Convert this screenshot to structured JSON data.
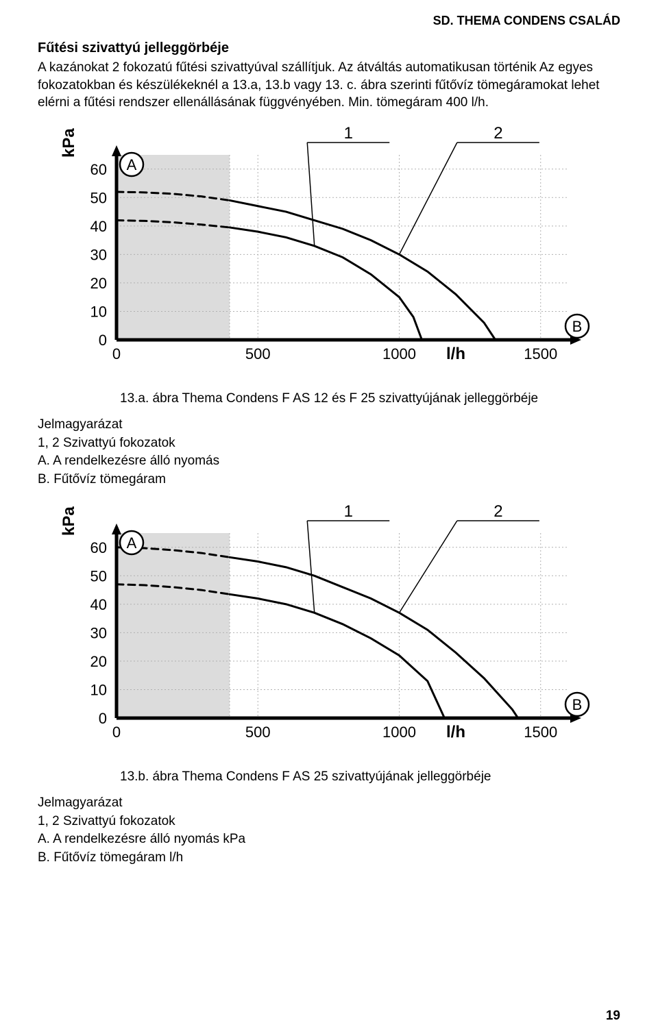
{
  "header": {
    "right": "SD. THEMA CONDENS CSALÁD"
  },
  "section": {
    "title": "Fűtési szivattyú jelleggörbéje",
    "paragraph": "A kazánokat 2 fokozatú fűtési szivattyúval szállítjuk. Az átváltás automatikusan történik Az egyes fokozatokban és készülékeknél a 13.a, 13.b vagy 13. c. ábra szerinti fűtővíz tömegáramokat lehet elérni a fűtési rendszer ellenállásának függvényében. Min. tömegáram 400 l/h."
  },
  "chartA": {
    "type": "line",
    "y_unit": "kPa",
    "x_unit": "l/h",
    "y_ticks": [
      0,
      10,
      20,
      30,
      40,
      50,
      60
    ],
    "x_ticks": [
      0,
      500,
      1000,
      1500
    ],
    "ylim": [
      0,
      65
    ],
    "xlim": [
      0,
      1600
    ],
    "shaded_x_range": [
      0,
      400
    ],
    "marker_A": "A",
    "marker_B": "B",
    "callout_1": "1",
    "callout_2": "2",
    "series": [
      {
        "name": "curve1",
        "color": "#000000",
        "width": 3,
        "dash_until_x": 400,
        "points": [
          [
            0,
            42
          ],
          [
            100,
            41.8
          ],
          [
            200,
            41.3
          ],
          [
            300,
            40.5
          ],
          [
            400,
            39.5
          ],
          [
            500,
            38
          ],
          [
            600,
            36
          ],
          [
            700,
            33
          ],
          [
            800,
            29
          ],
          [
            900,
            23
          ],
          [
            1000,
            15
          ],
          [
            1050,
            8
          ],
          [
            1080,
            0
          ]
        ]
      },
      {
        "name": "curve2",
        "color": "#000000",
        "width": 3,
        "dash_until_x": 400,
        "points": [
          [
            0,
            52
          ],
          [
            100,
            51.8
          ],
          [
            200,
            51.3
          ],
          [
            300,
            50.4
          ],
          [
            400,
            49
          ],
          [
            500,
            47
          ],
          [
            600,
            45
          ],
          [
            700,
            42
          ],
          [
            800,
            39
          ],
          [
            900,
            35
          ],
          [
            1000,
            30
          ],
          [
            1100,
            24
          ],
          [
            1200,
            16
          ],
          [
            1300,
            6
          ],
          [
            1340,
            0
          ]
        ]
      }
    ],
    "callouts": [
      {
        "label": "1",
        "line_to_x": 700,
        "line_to_curve": 1
      },
      {
        "label": "2",
        "line_to_x": 1000,
        "line_to_curve": 2
      }
    ],
    "colors": {
      "axis": "#000000",
      "grid": "#b0b0b0",
      "shade": "#dcdcdc",
      "bg": "#ffffff"
    },
    "tick_fontsize": 22,
    "unit_fontsize": 24
  },
  "captionA": "13.a. ábra Thema Condens F AS 12 és F 25 szivattyújának jelleggörbéje",
  "legendA": {
    "title": "Jelmagyarázat",
    "l1": "1, 2  Szivattyú fokozatok",
    "l2": "A. A rendelkezésre álló nyomás",
    "l3": "B. Fűtővíz tömegáram"
  },
  "chartB": {
    "type": "line",
    "y_unit": "kPa",
    "x_unit": "l/h",
    "y_ticks": [
      0,
      10,
      20,
      30,
      40,
      50,
      60
    ],
    "x_ticks": [
      0,
      500,
      1000,
      1500
    ],
    "ylim": [
      0,
      65
    ],
    "xlim": [
      0,
      1600
    ],
    "shaded_x_range": [
      0,
      400
    ],
    "marker_A": "A",
    "marker_B": "B",
    "callout_1": "1",
    "callout_2": "2",
    "series": [
      {
        "name": "curve1",
        "color": "#000000",
        "width": 3,
        "dash_until_x": 400,
        "points": [
          [
            0,
            47
          ],
          [
            100,
            46.7
          ],
          [
            200,
            46
          ],
          [
            300,
            45
          ],
          [
            400,
            43.5
          ],
          [
            500,
            42
          ],
          [
            600,
            40
          ],
          [
            700,
            37
          ],
          [
            800,
            33
          ],
          [
            900,
            28
          ],
          [
            1000,
            22
          ],
          [
            1100,
            13
          ],
          [
            1160,
            0
          ]
        ]
      },
      {
        "name": "curve2",
        "color": "#000000",
        "width": 3,
        "dash_until_x": 400,
        "points": [
          [
            0,
            60
          ],
          [
            100,
            59.7
          ],
          [
            200,
            59
          ],
          [
            300,
            58
          ],
          [
            400,
            56.5
          ],
          [
            500,
            55
          ],
          [
            600,
            53
          ],
          [
            700,
            50
          ],
          [
            800,
            46
          ],
          [
            900,
            42
          ],
          [
            1000,
            37
          ],
          [
            1100,
            31
          ],
          [
            1200,
            23
          ],
          [
            1300,
            14
          ],
          [
            1400,
            3
          ],
          [
            1420,
            0
          ]
        ]
      }
    ],
    "colors": {
      "axis": "#000000",
      "grid": "#b0b0b0",
      "shade": "#dcdcdc",
      "bg": "#ffffff"
    },
    "tick_fontsize": 22,
    "unit_fontsize": 24
  },
  "captionB": "13.b. ábra Thema Condens F AS 25 szivattyújának jelleggörbéje",
  "legendB": {
    "title": "Jelmagyarázat",
    "l1": "1, 2  Szivattyú fokozatok",
    "l2": "A. A rendelkezésre álló nyomás kPa",
    "l3": "B. Fűtővíz tömegáram  l/h"
  },
  "page_number": "19"
}
